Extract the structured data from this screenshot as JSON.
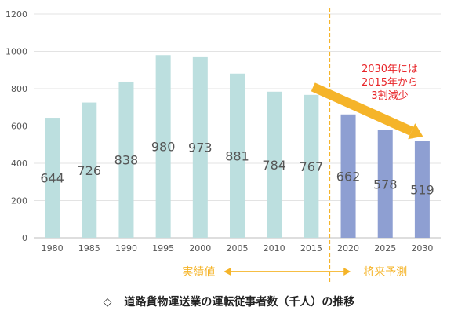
{
  "chart_data": {
    "type": "bar",
    "categories": [
      "1980",
      "1985",
      "1990",
      "1995",
      "2000",
      "2005",
      "2010",
      "2015",
      "2020",
      "2025",
      "2030"
    ],
    "values": [
      644,
      726,
      838,
      980,
      973,
      881,
      784,
      767,
      662,
      578,
      519
    ],
    "actual_count": 8,
    "ylim": [
      0,
      1200
    ],
    "yticks": [
      "0",
      "200",
      "400",
      "600",
      "800",
      "1000",
      "1200"
    ],
    "grid": true,
    "colors": {
      "actual": "#bcdfdf",
      "projected": "#8e9fd2",
      "divider": "#f5b429",
      "arrow": "#f5b429",
      "annotation": "#e8262a",
      "label": "#555555"
    },
    "region_labels": {
      "actual": "実績値",
      "projected": "将来予測"
    },
    "annotation": [
      "2030年には",
      "2015年から",
      "3割減少"
    ]
  },
  "caption": {
    "mark": "◇",
    "text": "道路貨物運送業の運転従事者数（千人）の推移"
  }
}
